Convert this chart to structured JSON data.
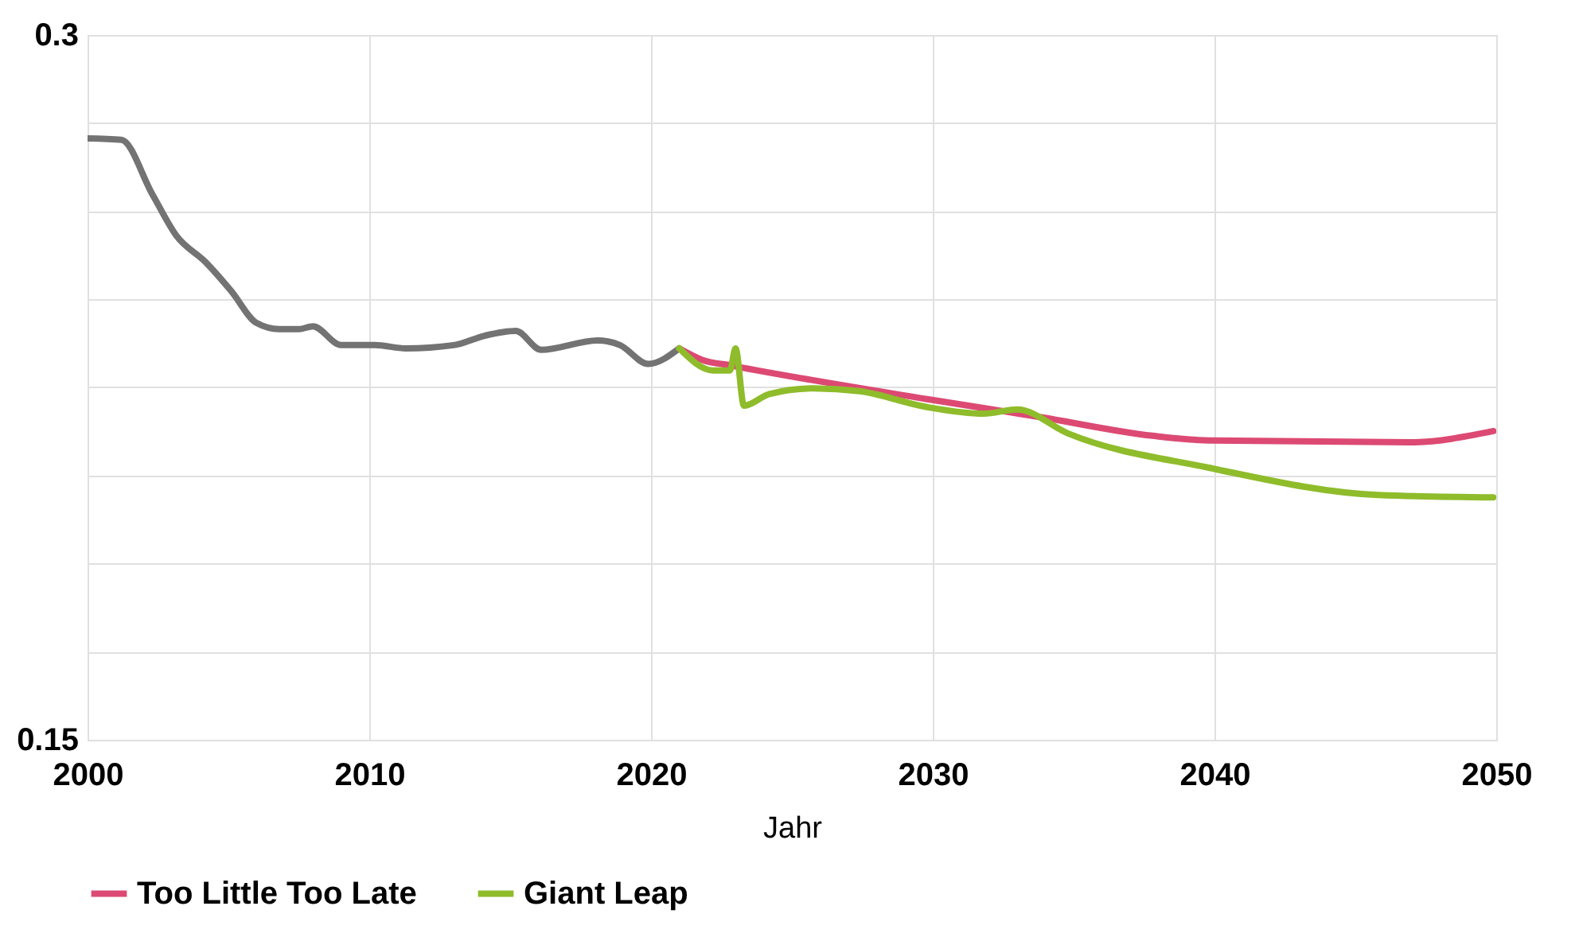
{
  "chart_data": {
    "type": "line",
    "xlabel": "Jahr",
    "xlim": [
      2000,
      2050
    ],
    "xticks": [
      2000,
      2010,
      2020,
      2030,
      2040,
      2050
    ],
    "ylim": [
      0.15,
      0.3
    ],
    "yticks": [
      0.15,
      {
        "value": 0.16875,
        "label": null
      },
      {
        "value": 0.1875,
        "label": null
      },
      {
        "value": 0.20625,
        "label": null
      },
      {
        "value": 0.225,
        "label": null
      },
      {
        "value": 0.24375,
        "label": null
      },
      {
        "value": 0.2625,
        "label": null
      },
      {
        "value": 0.28125,
        "label": null
      },
      0.3
    ],
    "grid": true,
    "legend": "bottom",
    "marker": "none",
    "line_style": "solid",
    "series": [
      {
        "color": "#737373",
        "x": [
          2000,
          2001.2,
          2002.3,
          2003.15,
          2004.2,
          2005.1,
          2006,
          2006.8,
          2007.5,
          2008,
          2009,
          2010.2,
          2011.3,
          2013,
          2014.1,
          2015.2,
          2016.1,
          2018.1,
          2018.9,
          2019.9,
          2021
        ],
        "values": [
          0.278,
          0.2777,
          0.2661,
          0.2573,
          0.2516,
          0.2455,
          0.2387,
          0.2374,
          0.2374,
          0.238,
          0.234,
          0.234,
          0.2333,
          0.234,
          0.236,
          0.237,
          0.233,
          0.235,
          0.234,
          0.23,
          0.2333
        ]
      },
      {
        "name": "Too Little Too Late",
        "color": "#dc4a73",
        "x": [
          2021,
          2021.8,
          2022.9,
          2029.8,
          2033.8,
          2037.8,
          2039.8,
          2046.9,
          2049.9
        ],
        "values": [
          0.2333,
          0.2309,
          0.2296,
          0.2225,
          0.2187,
          0.2147,
          0.2137,
          0.2133,
          0.2157
        ]
      },
      {
        "name": "Giant Leap",
        "color": "#8fbc2b",
        "x": [
          2021,
          2022.2,
          2022.8,
          2023,
          2023.3,
          2024.2,
          2025.8,
          2027.4,
          2029.8,
          2031.8,
          2033,
          2034.8,
          2039.8,
          2045.8,
          2049.9
        ],
        "values": [
          0.2333,
          0.2286,
          0.2286,
          0.2333,
          0.2211,
          0.2236,
          0.2248,
          0.2242,
          0.2208,
          0.2194,
          0.2203,
          0.2152,
          0.2079,
          0.2021,
          0.2016
        ]
      }
    ]
  }
}
